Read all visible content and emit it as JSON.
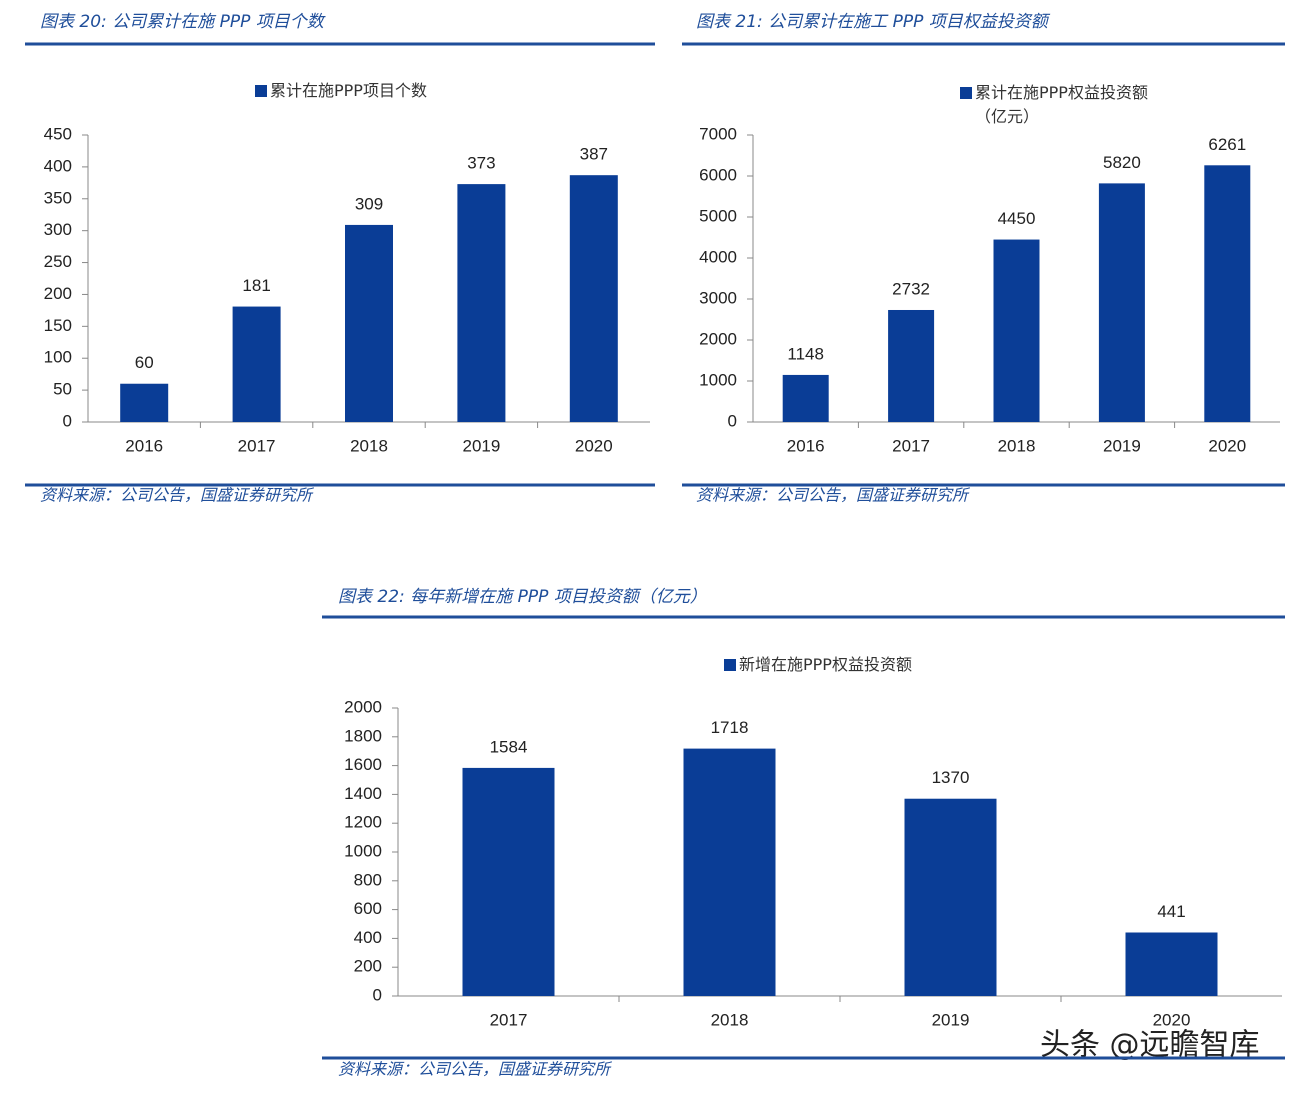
{
  "chart_data": [
    {
      "type": "bar",
      "title": "图表 20:  公司累计在施 PPP 项目个数",
      "categories": [
        "2016",
        "2017",
        "2018",
        "2019",
        "2020"
      ],
      "series": [
        {
          "name": "累计在施PPP项目个数",
          "color": "#0a3d96",
          "values": [
            60,
            181,
            309,
            373,
            387
          ]
        }
      ],
      "ylim": [
        0,
        450
      ],
      "yticks": [
        0,
        50,
        100,
        150,
        200,
        250,
        300,
        350,
        400,
        450
      ],
      "source": "资料来源：公司公告，国盛证券研究所"
    },
    {
      "type": "bar",
      "title": "图表 21:  公司累计在施工 PPP 项目权益投资额",
      "categories": [
        "2016",
        "2017",
        "2018",
        "2019",
        "2020"
      ],
      "series": [
        {
          "name": "累计在施PPP权益投资额（亿元）",
          "color": "#0a3d96",
          "values": [
            1148,
            2732,
            4450,
            5820,
            6261
          ]
        }
      ],
      "ylim": [
        0,
        7000
      ],
      "yticks": [
        0,
        1000,
        2000,
        3000,
        4000,
        5000,
        6000,
        7000
      ],
      "source": "资料来源：公司公告，国盛证券研究所"
    },
    {
      "type": "bar",
      "title": "图表 22:  每年新增在施 PPP 项目投资额（亿元）",
      "categories": [
        "2017",
        "2018",
        "2019",
        "2020"
      ],
      "series": [
        {
          "name": "新增在施PPP权益投资额",
          "color": "#0a3d96",
          "values": [
            1584,
            1718,
            1370,
            441
          ]
        }
      ],
      "ylim": [
        0,
        2000
      ],
      "yticks": [
        0,
        200,
        400,
        600,
        800,
        1000,
        1200,
        1400,
        1600,
        1800,
        2000
      ],
      "source": "资料来源：公司公告，国盛证券研究所"
    }
  ],
  "watermark": "头条 @远瞻智库"
}
